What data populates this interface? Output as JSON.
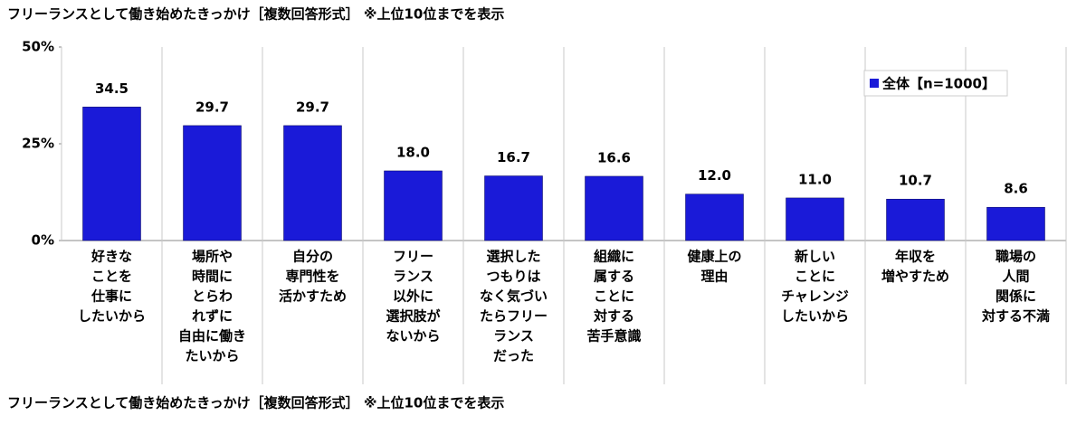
{
  "chart_data": {
    "type": "bar",
    "title": "フリーランスとして働き始めたきっかけ［複数回答形式］ ※上位10位までを表示",
    "footnote": "フリーランスとして働き始めたきっかけ［複数回答形式］ ※上位10位までを表示",
    "categories": [
      [
        "好きな",
        "ことを",
        "仕事に",
        "したいから"
      ],
      [
        "場所や",
        "時間に",
        "とらわ",
        "れずに",
        "自由に働き",
        "たいから"
      ],
      [
        "自分の",
        "専門性を",
        "活かすため"
      ],
      [
        "フリー",
        "ランス",
        "以外に",
        "選択肢が",
        "ないから"
      ],
      [
        "選択した",
        "つもりは",
        "なく気づい",
        "たらフリー",
        "ランス",
        "だった"
      ],
      [
        "組織に",
        "属する",
        "ことに",
        "対する",
        "苦手意識"
      ],
      [
        "健康上の",
        "理由"
      ],
      [
        "新しい",
        "ことに",
        "チャレンジ",
        "したいから"
      ],
      [
        "年収を",
        "増やすため"
      ],
      [
        "職場の",
        "人間",
        "関係に",
        "対する不満"
      ]
    ],
    "series": [
      {
        "name": "全体【n=1000】",
        "color": "#1a1ad8",
        "values": [
          34.5,
          29.7,
          29.7,
          18.0,
          16.7,
          16.6,
          12.0,
          11.0,
          10.7,
          8.6
        ],
        "value_labels": [
          "34.5",
          "29.7",
          "29.7",
          "18.0",
          "16.7",
          "16.6",
          "12.0",
          "11.0",
          "10.7",
          "8.6"
        ]
      }
    ],
    "ylim": [
      0,
      50
    ],
    "yticks": [
      {
        "value": 0,
        "label": "0%"
      },
      {
        "value": 25,
        "label": "25%"
      },
      {
        "value": 50,
        "label": "50%"
      }
    ],
    "legend": "top-right"
  }
}
